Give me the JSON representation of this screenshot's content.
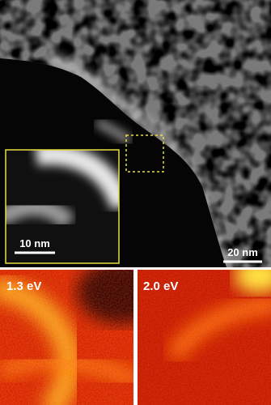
{
  "main_image": {
    "scale_bar": "20 nm"
  },
  "inset": {
    "scale_bar": "10 nm"
  },
  "maps": [
    {
      "label": "1.3 eV"
    },
    {
      "label": "2.0 eV"
    }
  ]
}
